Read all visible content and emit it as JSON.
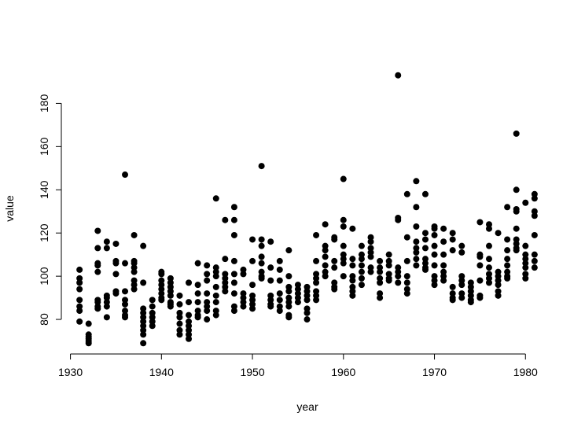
{
  "chart_data": {
    "type": "scatter",
    "xlabel": "year",
    "ylabel": "value",
    "color": "#000000",
    "xlim": [
      1929,
      1983
    ],
    "ylim": [
      64,
      198
    ],
    "xticks": [
      1930,
      1940,
      1950,
      1960,
      1970,
      1980
    ],
    "yticks": [
      80,
      100,
      120,
      140,
      160,
      180
    ],
    "x": [
      1931,
      1931,
      1931,
      1931,
      1931,
      1931,
      1931,
      1931,
      1932,
      1932,
      1932,
      1932,
      1932,
      1932,
      1933,
      1933,
      1933,
      1933,
      1933,
      1933,
      1933,
      1933,
      1933,
      1934,
      1934,
      1934,
      1934,
      1934,
      1934,
      1934,
      1935,
      1935,
      1935,
      1935,
      1935,
      1935,
      1936,
      1936,
      1936,
      1936,
      1936,
      1936,
      1936,
      1936,
      1937,
      1937,
      1937,
      1937,
      1937,
      1937,
      1937,
      1937,
      1938,
      1938,
      1938,
      1938,
      1938,
      1938,
      1938,
      1938,
      1938,
      1938,
      1939,
      1939,
      1939,
      1939,
      1939,
      1939,
      1940,
      1940,
      1940,
      1940,
      1940,
      1940,
      1940,
      1940,
      1941,
      1941,
      1941,
      1941,
      1941,
      1941,
      1941,
      1941,
      1942,
      1942,
      1942,
      1942,
      1942,
      1942,
      1942,
      1943,
      1943,
      1943,
      1943,
      1943,
      1943,
      1943,
      1943,
      1944,
      1944,
      1944,
      1944,
      1944,
      1944,
      1944,
      1945,
      1945,
      1945,
      1945,
      1945,
      1945,
      1945,
      1945,
      1946,
      1946,
      1946,
      1946,
      1946,
      1946,
      1946,
      1946,
      1946,
      1947,
      1947,
      1947,
      1947,
      1947,
      1947,
      1947,
      1948,
      1948,
      1948,
      1948,
      1948,
      1948,
      1948,
      1948,
      1948,
      1949,
      1949,
      1949,
      1949,
      1949,
      1949,
      1950,
      1950,
      1950,
      1950,
      1950,
      1950,
      1950,
      1951,
      1951,
      1951,
      1951,
      1951,
      1951,
      1951,
      1951,
      1952,
      1952,
      1952,
      1952,
      1952,
      1952,
      1952,
      1953,
      1953,
      1953,
      1953,
      1953,
      1953,
      1953,
      1954,
      1954,
      1954,
      1954,
      1954,
      1954,
      1954,
      1954,
      1954,
      1955,
      1955,
      1955,
      1955,
      1955,
      1956,
      1956,
      1956,
      1956,
      1956,
      1956,
      1956,
      1957,
      1957,
      1957,
      1957,
      1957,
      1957,
      1957,
      1957,
      1958,
      1958,
      1958,
      1958,
      1958,
      1958,
      1958,
      1959,
      1959,
      1959,
      1959,
      1959,
      1959,
      1959,
      1960,
      1960,
      1960,
      1960,
      1960,
      1960,
      1960,
      1960,
      1961,
      1961,
      1961,
      1961,
      1961,
      1961,
      1961,
      1961,
      1962,
      1962,
      1962,
      1962,
      1962,
      1962,
      1962,
      1963,
      1963,
      1963,
      1963,
      1963,
      1963,
      1963,
      1964,
      1964,
      1964,
      1964,
      1964,
      1964,
      1964,
      1965,
      1965,
      1965,
      1965,
      1965,
      1965,
      1966,
      1966,
      1966,
      1966,
      1966,
      1966,
      1966,
      1967,
      1967,
      1967,
      1967,
      1967,
      1967,
      1967,
      1968,
      1968,
      1968,
      1968,
      1968,
      1968,
      1968,
      1968,
      1969,
      1969,
      1969,
      1969,
      1969,
      1969,
      1969,
      1969,
      1970,
      1970,
      1970,
      1970,
      1970,
      1970,
      1970,
      1970,
      1970,
      1971,
      1971,
      1971,
      1971,
      1971,
      1971,
      1971,
      1972,
      1972,
      1972,
      1972,
      1972,
      1972,
      1972,
      1973,
      1973,
      1973,
      1973,
      1973,
      1973,
      1973,
      1974,
      1974,
      1974,
      1974,
      1974,
      1974,
      1975,
      1975,
      1975,
      1975,
      1975,
      1975,
      1975,
      1976,
      1976,
      1976,
      1976,
      1976,
      1976,
      1976,
      1976,
      1977,
      1977,
      1977,
      1977,
      1977,
      1977,
      1977,
      1978,
      1978,
      1978,
      1978,
      1978,
      1978,
      1978,
      1978,
      1979,
      1979,
      1979,
      1979,
      1979,
      1979,
      1979,
      1979,
      1979,
      1980,
      1980,
      1980,
      1980,
      1980,
      1980,
      1980,
      1980,
      1981,
      1981,
      1981,
      1981,
      1981,
      1981,
      1981,
      1981
    ],
    "values": [
      103,
      99,
      97,
      94,
      89,
      86,
      84,
      79,
      78,
      73,
      72,
      71,
      70,
      69,
      121,
      113,
      106,
      105,
      102,
      89,
      88,
      86,
      85,
      116,
      113,
      91,
      90,
      88,
      86,
      81,
      115,
      107,
      106,
      101,
      93,
      92,
      147,
      106,
      93,
      89,
      87,
      84,
      82,
      81,
      119,
      107,
      106,
      104,
      102,
      98,
      96,
      94,
      114,
      97,
      85,
      83,
      81,
      79,
      77,
      75,
      73,
      69,
      89,
      86,
      83,
      81,
      79,
      77,
      102,
      101,
      98,
      96,
      94,
      92,
      90,
      89,
      99,
      97,
      95,
      93,
      91,
      88,
      87,
      86,
      91,
      87,
      83,
      81,
      78,
      75,
      73,
      97,
      88,
      82,
      79,
      77,
      75,
      73,
      71,
      106,
      96,
      92,
      88,
      84,
      82,
      81,
      105,
      101,
      98,
      92,
      88,
      86,
      84,
      80,
      136,
      104,
      102,
      100,
      95,
      91,
      88,
      84,
      82,
      126,
      108,
      101,
      99,
      97,
      95,
      93,
      132,
      126,
      119,
      107,
      101,
      97,
      92,
      86,
      84,
      103,
      101,
      92,
      90,
      88,
      86,
      117,
      107,
      96,
      91,
      89,
      87,
      85,
      151,
      117,
      114,
      109,
      106,
      102,
      100,
      99,
      116,
      104,
      98,
      91,
      89,
      87,
      86,
      107,
      103,
      98,
      92,
      89,
      86,
      84,
      112,
      100,
      95,
      93,
      90,
      88,
      86,
      82,
      81,
      96,
      94,
      92,
      90,
      88,
      95,
      93,
      91,
      89,
      85,
      83,
      80,
      119,
      107,
      101,
      99,
      97,
      93,
      91,
      89,
      124,
      114,
      112,
      109,
      105,
      102,
      100,
      118,
      117,
      107,
      104,
      97,
      95,
      94,
      145,
      126,
      123,
      114,
      110,
      108,
      106,
      100,
      122,
      108,
      105,
      100,
      98,
      95,
      93,
      91,
      114,
      110,
      108,
      105,
      102,
      99,
      96,
      118,
      116,
      113,
      111,
      109,
      104,
      102,
      107,
      104,
      102,
      99,
      97,
      92,
      90,
      110,
      107,
      105,
      101,
      99,
      98,
      193,
      127,
      126,
      104,
      102,
      100,
      97,
      138,
      118,
      107,
      100,
      97,
      94,
      92,
      144,
      132,
      123,
      116,
      113,
      111,
      108,
      105,
      138,
      120,
      117,
      113,
      108,
      106,
      104,
      103,
      123,
      122,
      119,
      114,
      110,
      105,
      100,
      98,
      96,
      122,
      116,
      110,
      105,
      102,
      100,
      98,
      120,
      117,
      112,
      95,
      92,
      90,
      89,
      114,
      111,
      100,
      98,
      96,
      92,
      90,
      97,
      95,
      93,
      91,
      89,
      88,
      125,
      110,
      109,
      105,
      98,
      91,
      90,
      124,
      122,
      114,
      108,
      104,
      101,
      99,
      97,
      120,
      102,
      100,
      98,
      96,
      93,
      91,
      132,
      117,
      112,
      108,
      105,
      102,
      100,
      99,
      166,
      140,
      131,
      130,
      122,
      117,
      115,
      113,
      112,
      134,
      114,
      110,
      108,
      106,
      104,
      101,
      99,
      138,
      136,
      130,
      128,
      119,
      110,
      107,
      104
    ]
  }
}
